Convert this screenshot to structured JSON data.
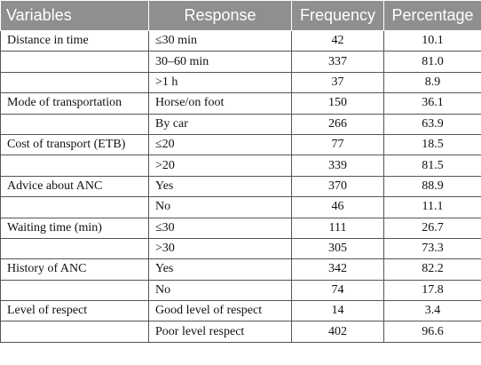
{
  "table": {
    "headers": [
      "Variables",
      "Response",
      "Frequency",
      "Percentage"
    ],
    "rows": [
      {
        "variable": "Distance in time",
        "response": "≤30 min",
        "frequency": "42",
        "percentage": "10.1"
      },
      {
        "variable": "",
        "response": "30–60 min",
        "frequency": "337",
        "percentage": "81.0"
      },
      {
        "variable": "",
        "response": ">1 h",
        "frequency": "37",
        "percentage": "8.9"
      },
      {
        "variable": "Mode of transportation",
        "response": "Horse/on foot",
        "frequency": "150",
        "percentage": "36.1"
      },
      {
        "variable": "",
        "response": "By car",
        "frequency": "266",
        "percentage": "63.9"
      },
      {
        "variable": "Cost of transport (ETB)",
        "response": "≤20",
        "frequency": "77",
        "percentage": "18.5"
      },
      {
        "variable": "",
        "response": ">20",
        "frequency": "339",
        "percentage": "81.5"
      },
      {
        "variable": "Advice about ANC",
        "response": "Yes",
        "frequency": "370",
        "percentage": "88.9"
      },
      {
        "variable": "",
        "response": "No",
        "frequency": "46",
        "percentage": "11.1"
      },
      {
        "variable": "Waiting time (min)",
        "response": "≤30",
        "frequency": "111",
        "percentage": "26.7"
      },
      {
        "variable": "",
        "response": ">30",
        "frequency": "305",
        "percentage": "73.3"
      },
      {
        "variable": "History of ANC",
        "response": "Yes",
        "frequency": "342",
        "percentage": "82.2"
      },
      {
        "variable": "",
        "response": "No",
        "frequency": "74",
        "percentage": "17.8"
      },
      {
        "variable": "Level of respect",
        "response": "Good level of respect",
        "frequency": "14",
        "percentage": "3.4"
      },
      {
        "variable": "",
        "response": "Poor level respect",
        "frequency": "402",
        "percentage": "96.6"
      }
    ]
  },
  "colors": {
    "header_background": "#8f8f8f",
    "header_text": "#ffffff",
    "grid_line": "#555555"
  }
}
